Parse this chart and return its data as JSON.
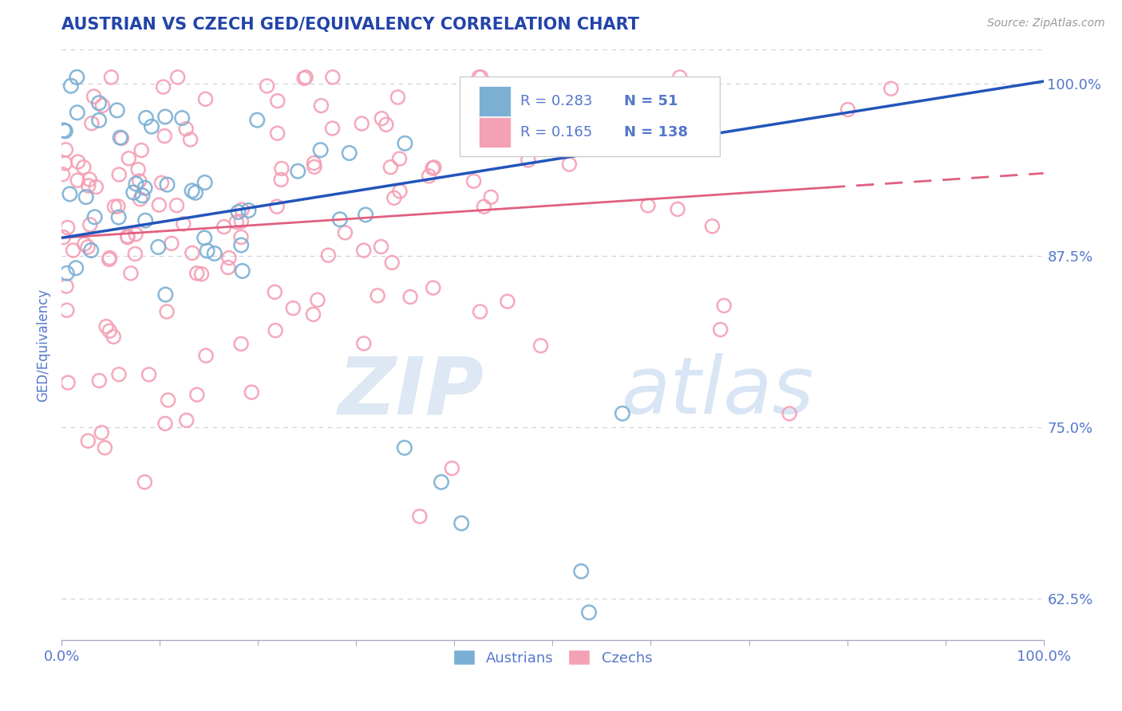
{
  "title": "AUSTRIAN VS CZECH GED/EQUIVALENCY CORRELATION CHART",
  "ylabel": "GED/Equivalency",
  "source_text": "Source: ZipAtlas.com",
  "watermark_zip": "ZIP",
  "watermark_atlas": "atlas",
  "xlim": [
    0.0,
    1.0
  ],
  "ylim": [
    0.595,
    1.025
  ],
  "yticks": [
    0.625,
    0.75,
    0.875,
    1.0
  ],
  "ytick_labels": [
    "62.5%",
    "75.0%",
    "87.5%",
    "100.0%"
  ],
  "austrian_color": "#7bafd4",
  "austrian_edge": "#7bafd4",
  "czech_color": "#f4a0b5",
  "czech_edge": "#f4a0b5",
  "trend_blue": "#2255bb",
  "trend_pink": "#e06080",
  "legend_R_austrian": "0.283",
  "legend_N_austrian": "51",
  "legend_R_czech": "0.165",
  "legend_N_czech": "138",
  "title_color": "#2244aa",
  "axis_color": "#5577cc",
  "tick_color": "#5577cc",
  "grid_color": "#ccccdd",
  "background_color": "#ffffff",
  "source_color": "#999999"
}
